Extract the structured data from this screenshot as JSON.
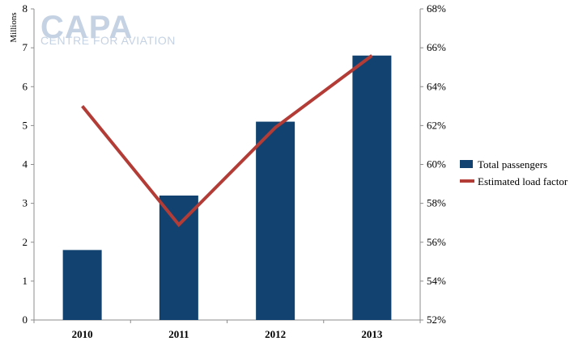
{
  "watermark": {
    "main": "CAPA",
    "sub": "CENTRE FOR AVIATION",
    "color": "#c5d2e3"
  },
  "chart_data": {
    "type": "bar",
    "categories": [
      "2010",
      "2011",
      "2012",
      "2013"
    ],
    "series": [
      {
        "name": "Total passengers",
        "type": "bar",
        "axis": "left",
        "color": "#124370",
        "values": [
          1.8,
          3.2,
          5.1,
          6.8
        ]
      },
      {
        "name": "Estimated load factor",
        "type": "line",
        "axis": "right",
        "color": "#b33c37",
        "values": [
          0.63,
          0.569,
          0.619,
          0.656
        ]
      }
    ],
    "y_left": {
      "label": "Millions",
      "min": 0,
      "max": 8,
      "step": 1,
      "ticks": [
        "0",
        "1",
        "2",
        "3",
        "4",
        "5",
        "6",
        "7",
        "8"
      ]
    },
    "y_right": {
      "min": 0.52,
      "max": 0.68,
      "step": 0.02,
      "ticks": [
        "52%",
        "54%",
        "56%",
        "58%",
        "60%",
        "62%",
        "64%",
        "66%",
        "68%"
      ]
    },
    "grid": false,
    "legend": "right"
  }
}
